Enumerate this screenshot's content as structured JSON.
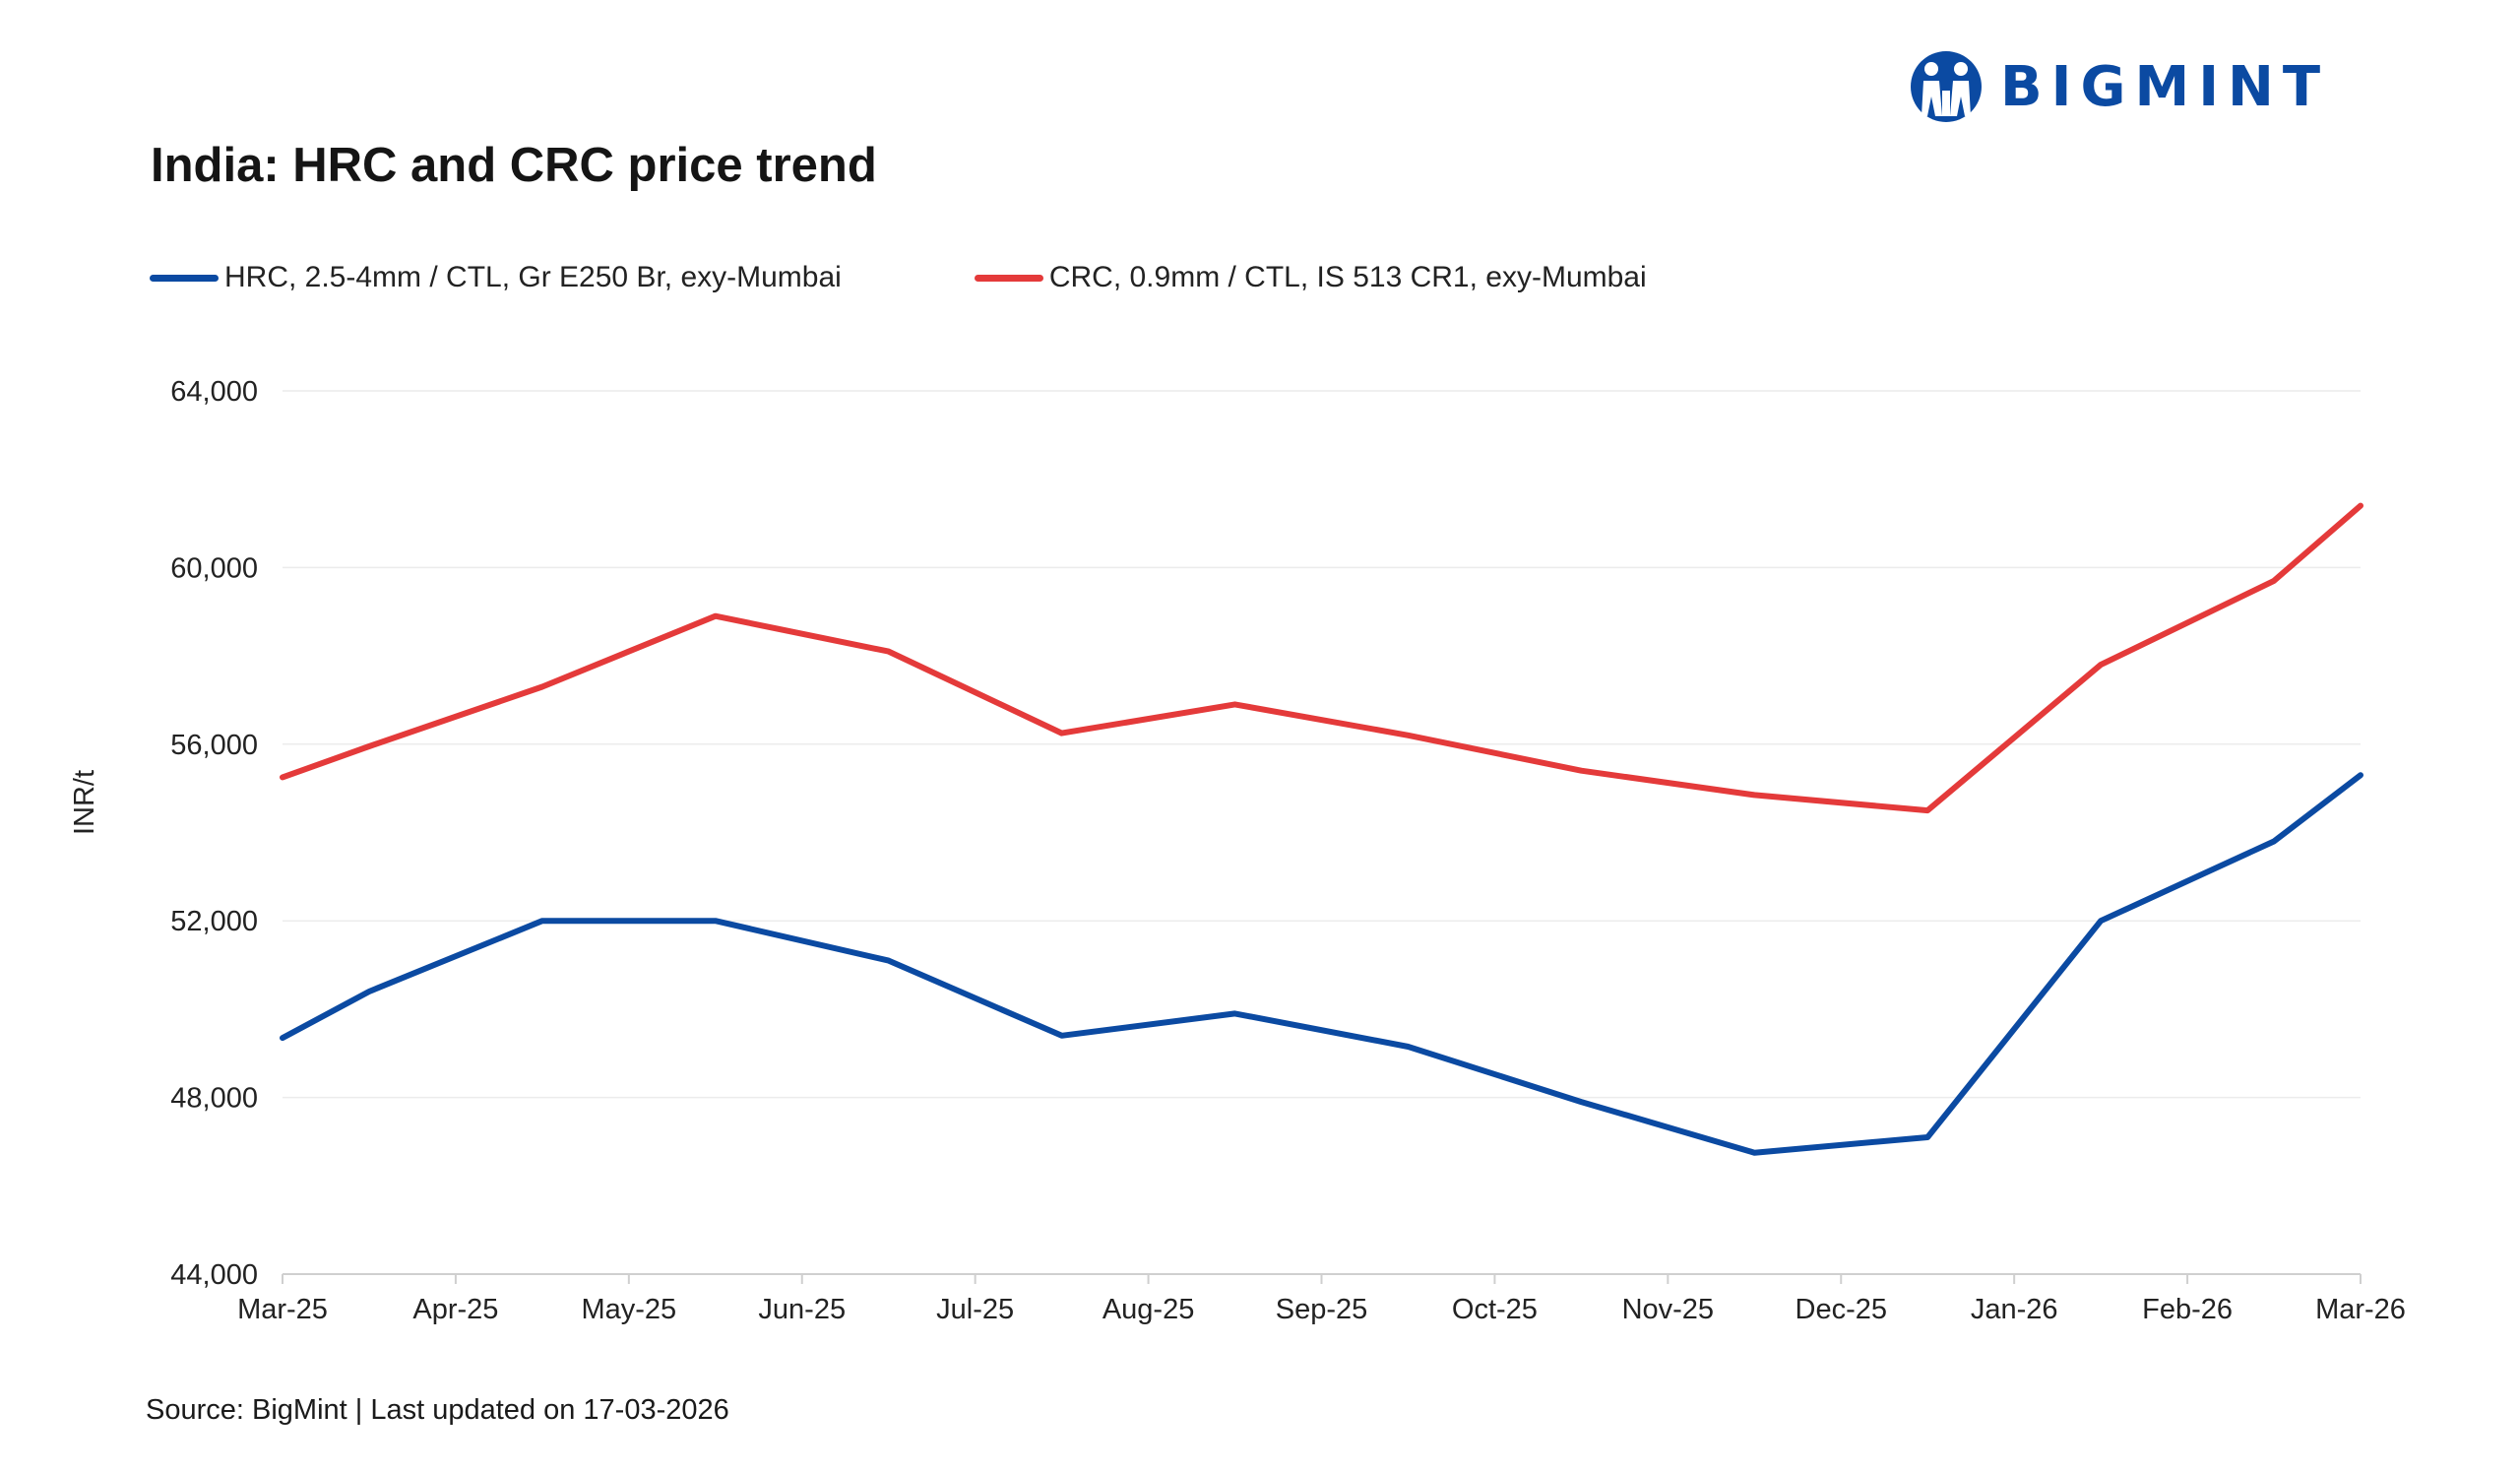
{
  "logo": {
    "text": "BIGMINT"
  },
  "chart_data": {
    "type": "line",
    "title": "India: HRC and CRC price trend",
    "ylabel": "INR/t",
    "xlabel": "",
    "ylim": [
      44000,
      64000
    ],
    "yticks": [
      44000,
      48000,
      52000,
      56000,
      60000,
      64000
    ],
    "ytick_labels": [
      "44,000",
      "48,000",
      "52,000",
      "56,000",
      "60,000",
      "64,000"
    ],
    "xaxis": {
      "start": "2025-03-01",
      "end": "2026-03-01",
      "tick_labels": [
        "Mar-25",
        "Apr-25",
        "May-25",
        "Jun-25",
        "Jul-25",
        "Aug-25",
        "Sep-25",
        "Oct-25",
        "Nov-25",
        "Dec-25",
        "Jan-26",
        "Feb-26",
        "Mar-26"
      ]
    },
    "grid": true,
    "legend_position": "top-left",
    "series": [
      {
        "name": "HRC, 2.5-4mm / CTL, Gr E250 Br, exy-Mumbai",
        "color": "#0b4aa2",
        "points": [
          {
            "x": 0.0,
            "y": 49350
          },
          {
            "x": 0.5,
            "y": 50400
          },
          {
            "x": 1.5,
            "y": 52000
          },
          {
            "x": 2.5,
            "y": 52000
          },
          {
            "x": 3.5,
            "y": 51100
          },
          {
            "x": 4.5,
            "y": 49400
          },
          {
            "x": 5.5,
            "y": 49900
          },
          {
            "x": 6.5,
            "y": 49150
          },
          {
            "x": 7.5,
            "y": 47900
          },
          {
            "x": 8.5,
            "y": 46750
          },
          {
            "x": 9.5,
            "y": 47100
          },
          {
            "x": 10.5,
            "y": 52000
          },
          {
            "x": 11.5,
            "y": 53800
          },
          {
            "x": 12.0,
            "y": 55300
          }
        ]
      },
      {
        "name": "CRC, 0.9mm / CTL, IS 513 CR1, exy-Mumbai",
        "color": "#e43a3a",
        "points": [
          {
            "x": 0.0,
            "y": 55250
          },
          {
            "x": 0.5,
            "y": 55950
          },
          {
            "x": 1.5,
            "y": 57300
          },
          {
            "x": 2.5,
            "y": 58900
          },
          {
            "x": 3.5,
            "y": 58100
          },
          {
            "x": 4.5,
            "y": 56250
          },
          {
            "x": 5.5,
            "y": 56900
          },
          {
            "x": 6.5,
            "y": 56200
          },
          {
            "x": 7.5,
            "y": 55400
          },
          {
            "x": 8.5,
            "y": 54850
          },
          {
            "x": 9.5,
            "y": 54500
          },
          {
            "x": 10.5,
            "y": 57800
          },
          {
            "x": 11.5,
            "y": 59700
          },
          {
            "x": 12.0,
            "y": 61400
          }
        ]
      }
    ]
  },
  "footer": {
    "source_label": "Source: BigMint | Last updated on ",
    "updated_date": "17-03-2026"
  }
}
